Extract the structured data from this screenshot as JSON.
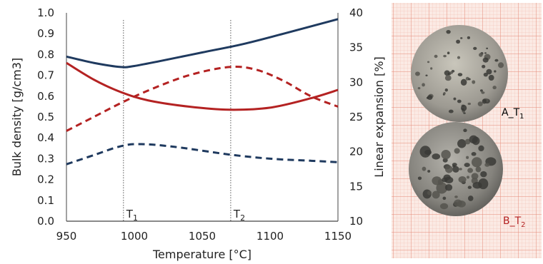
{
  "chart_data": {
    "type": "line",
    "title": "",
    "xlabel": "Temperature [°C]",
    "ylabel_left": "Bulk density [g/cm3]",
    "ylabel_right": "Linear expansion [%]",
    "xlim": [
      950,
      1150
    ],
    "ylim_left": [
      0.0,
      1.0
    ],
    "ylim_right": [
      10,
      40
    ],
    "x_ticks": [
      950,
      1000,
      1050,
      1100,
      1150
    ],
    "y_left_ticks": [
      "0.0",
      "0.1",
      "0.2",
      "0.3",
      "0.4",
      "0.5",
      "0.6",
      "0.7",
      "0.8",
      "0.9",
      "1.0"
    ],
    "y_right_ticks": [
      "10",
      "15",
      "20",
      "25",
      "30",
      "35",
      "40"
    ],
    "grid": false,
    "legend": "none",
    "markers": [
      {
        "base": "T",
        "sub": "1",
        "x": 992
      },
      {
        "base": "T",
        "sub": "2",
        "x": 1071
      }
    ],
    "series": [
      {
        "axis": "left",
        "style": "solid",
        "color": "#1f3a5f",
        "x": [
          950,
          970,
          990,
          1000,
          1020,
          1050,
          1080,
          1110,
          1150
        ],
        "y": [
          0.79,
          0.76,
          0.74,
          0.745,
          0.77,
          0.81,
          0.85,
          0.9,
          0.97
        ]
      },
      {
        "axis": "left",
        "style": "solid",
        "color": "#b42222",
        "x": [
          950,
          970,
          990,
          1010,
          1040,
          1070,
          1100,
          1130,
          1150
        ],
        "y": [
          0.76,
          0.68,
          0.62,
          0.58,
          0.55,
          0.535,
          0.545,
          0.59,
          0.63
        ]
      },
      {
        "axis": "right",
        "style": "dashed",
        "color": "#b42222",
        "x": [
          950,
          970,
          990,
          1010,
          1040,
          1070,
          1090,
          1110,
          1130,
          1150
        ],
        "y": [
          23.0,
          25.0,
          27.0,
          28.8,
          31.0,
          32.2,
          31.8,
          30.2,
          28.0,
          26.5
        ]
      },
      {
        "axis": "right",
        "style": "dashed",
        "color": "#1f3a5f",
        "x": [
          950,
          970,
          990,
          1005,
          1030,
          1070,
          1100,
          1130,
          1150
        ],
        "y": [
          18.2,
          19.5,
          20.8,
          21.1,
          20.7,
          19.6,
          19.0,
          18.7,
          18.5
        ]
      }
    ]
  },
  "samples": [
    {
      "name": "A",
      "sub": "1",
      "label_color": "#222222"
    },
    {
      "name": "B",
      "sub": "2",
      "label_color": "#b42222"
    }
  ]
}
